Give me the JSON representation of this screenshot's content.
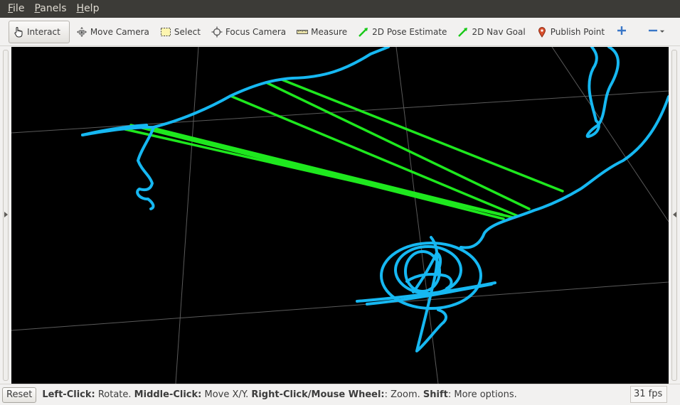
{
  "menubar": {
    "items": [
      {
        "accel": "F",
        "rest": "ile"
      },
      {
        "accel": "P",
        "rest": "anels"
      },
      {
        "accel": "H",
        "rest": "elp"
      }
    ]
  },
  "toolbar": {
    "interact": "Interact",
    "move_camera": "Move Camera",
    "select": "Select",
    "focus_camera": "Focus Camera",
    "measure": "Measure",
    "pose_estimate": "2D Pose Estimate",
    "nav_goal": "2D Nav Goal",
    "publish_point": "Publish Point"
  },
  "colors": {
    "path": "#16b8f2",
    "green": "#1ee81e",
    "grid": "#5a5a5a",
    "background": "#000000"
  },
  "statusbar": {
    "reset_label": "Reset",
    "hint_parts": [
      {
        "b": "Left-Click:",
        "t": " Rotate. "
      },
      {
        "b": "Middle-Click:",
        "t": " Move X/Y. "
      },
      {
        "b": "Right-Click/Mouse Wheel:",
        "t": ": Zoom. "
      },
      {
        "b": "Shift",
        "t": ": More options."
      }
    ],
    "fps": "31 fps"
  }
}
